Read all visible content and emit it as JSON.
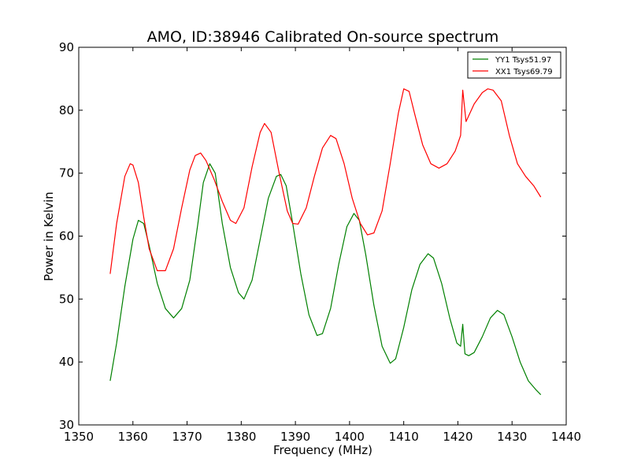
{
  "chart_data": {
    "type": "line",
    "title": "AMO, ID:38946 Calibrated On-source spectrum",
    "xlabel": "Frequency (MHz)",
    "ylabel": "Power in Kelvin",
    "xlim": [
      1350,
      1440
    ],
    "ylim": [
      30,
      90
    ],
    "xticks": [
      "1350",
      "1360",
      "1370",
      "1380",
      "1390",
      "1400",
      "1410",
      "1420",
      "1430",
      "1440"
    ],
    "yticks": [
      "30",
      "40",
      "50",
      "60",
      "70",
      "80",
      "90"
    ],
    "grid": false,
    "legend_position": "top-right",
    "series": [
      {
        "name": "YY1 Tsys51.97",
        "color": "#008000",
        "x": [
          1355.8,
          1357.0,
          1358.5,
          1360.0,
          1361.0,
          1362.0,
          1363.0,
          1364.5,
          1366.0,
          1367.5,
          1369.0,
          1370.5,
          1372.0,
          1373.0,
          1374.2,
          1375.2,
          1376.5,
          1378.0,
          1379.5,
          1380.5,
          1382.0,
          1383.5,
          1385.0,
          1386.5,
          1387.3,
          1388.3,
          1389.5,
          1391.0,
          1392.5,
          1394.0,
          1395.0,
          1396.5,
          1398.0,
          1399.5,
          1400.8,
          1401.8,
          1403.0,
          1404.5,
          1406.0,
          1407.5,
          1408.5,
          1410.0,
          1411.5,
          1413.0,
          1414.5,
          1415.5,
          1417.0,
          1418.5,
          1419.8,
          1420.5,
          1420.9,
          1421.3,
          1422.0,
          1423.0,
          1424.5,
          1426.0,
          1427.3,
          1428.5,
          1430.0,
          1431.5,
          1433.0,
          1434.5,
          1435.3
        ],
        "values": [
          37.0,
          43.0,
          52.0,
          59.5,
          62.5,
          62.0,
          58.5,
          52.5,
          48.5,
          47.0,
          48.5,
          53.0,
          62.0,
          68.5,
          71.5,
          70.0,
          62.0,
          55.0,
          51.0,
          50.0,
          53.0,
          59.5,
          66.0,
          69.5,
          69.8,
          68.0,
          62.0,
          54.0,
          47.5,
          44.2,
          44.5,
          48.5,
          55.5,
          61.5,
          63.6,
          62.5,
          57.0,
          49.0,
          42.5,
          39.8,
          40.5,
          45.5,
          51.5,
          55.5,
          57.2,
          56.5,
          52.5,
          47.0,
          43.0,
          42.5,
          46.0,
          41.3,
          41.0,
          41.5,
          44.0,
          47.0,
          48.2,
          47.5,
          44.0,
          40.0,
          37.0,
          35.5,
          34.8
        ]
      },
      {
        "name": "XX1 Tsys69.79",
        "color": "#ff0000",
        "x": [
          1355.8,
          1357.0,
          1358.5,
          1359.5,
          1360.0,
          1361.0,
          1362.0,
          1363.0,
          1364.5,
          1366.0,
          1367.5,
          1369.0,
          1370.5,
          1371.5,
          1372.5,
          1373.5,
          1375.0,
          1376.5,
          1378.0,
          1379.0,
          1380.5,
          1382.0,
          1383.5,
          1384.3,
          1385.5,
          1387.0,
          1388.5,
          1389.5,
          1390.5,
          1392.0,
          1393.5,
          1395.0,
          1396.5,
          1397.5,
          1399.0,
          1400.5,
          1402.0,
          1403.3,
          1404.5,
          1406.0,
          1407.5,
          1409.0,
          1410.0,
          1411.0,
          1412.0,
          1413.5,
          1415.0,
          1416.5,
          1418.0,
          1419.5,
          1420.5,
          1420.9,
          1421.5,
          1423.0,
          1424.5,
          1425.5,
          1426.5,
          1428.0,
          1429.5,
          1431.0,
          1432.5,
          1434.0,
          1435.3
        ],
        "values": [
          54.0,
          62.0,
          69.5,
          71.5,
          71.3,
          68.5,
          63.0,
          58.0,
          54.5,
          54.5,
          58.0,
          64.5,
          70.5,
          72.8,
          73.2,
          72.0,
          69.0,
          65.5,
          62.5,
          62.0,
          64.5,
          71.0,
          76.5,
          77.9,
          76.5,
          70.0,
          64.0,
          62.0,
          61.9,
          64.5,
          69.5,
          74.0,
          76.0,
          75.5,
          71.5,
          66.0,
          62.0,
          60.2,
          60.5,
          64.0,
          71.5,
          79.5,
          83.4,
          83.0,
          79.5,
          74.5,
          71.5,
          70.8,
          71.5,
          73.5,
          76.0,
          83.2,
          78.2,
          81.0,
          82.8,
          83.4,
          83.2,
          81.5,
          76.0,
          71.5,
          69.5,
          68.0,
          66.2
        ]
      }
    ]
  }
}
